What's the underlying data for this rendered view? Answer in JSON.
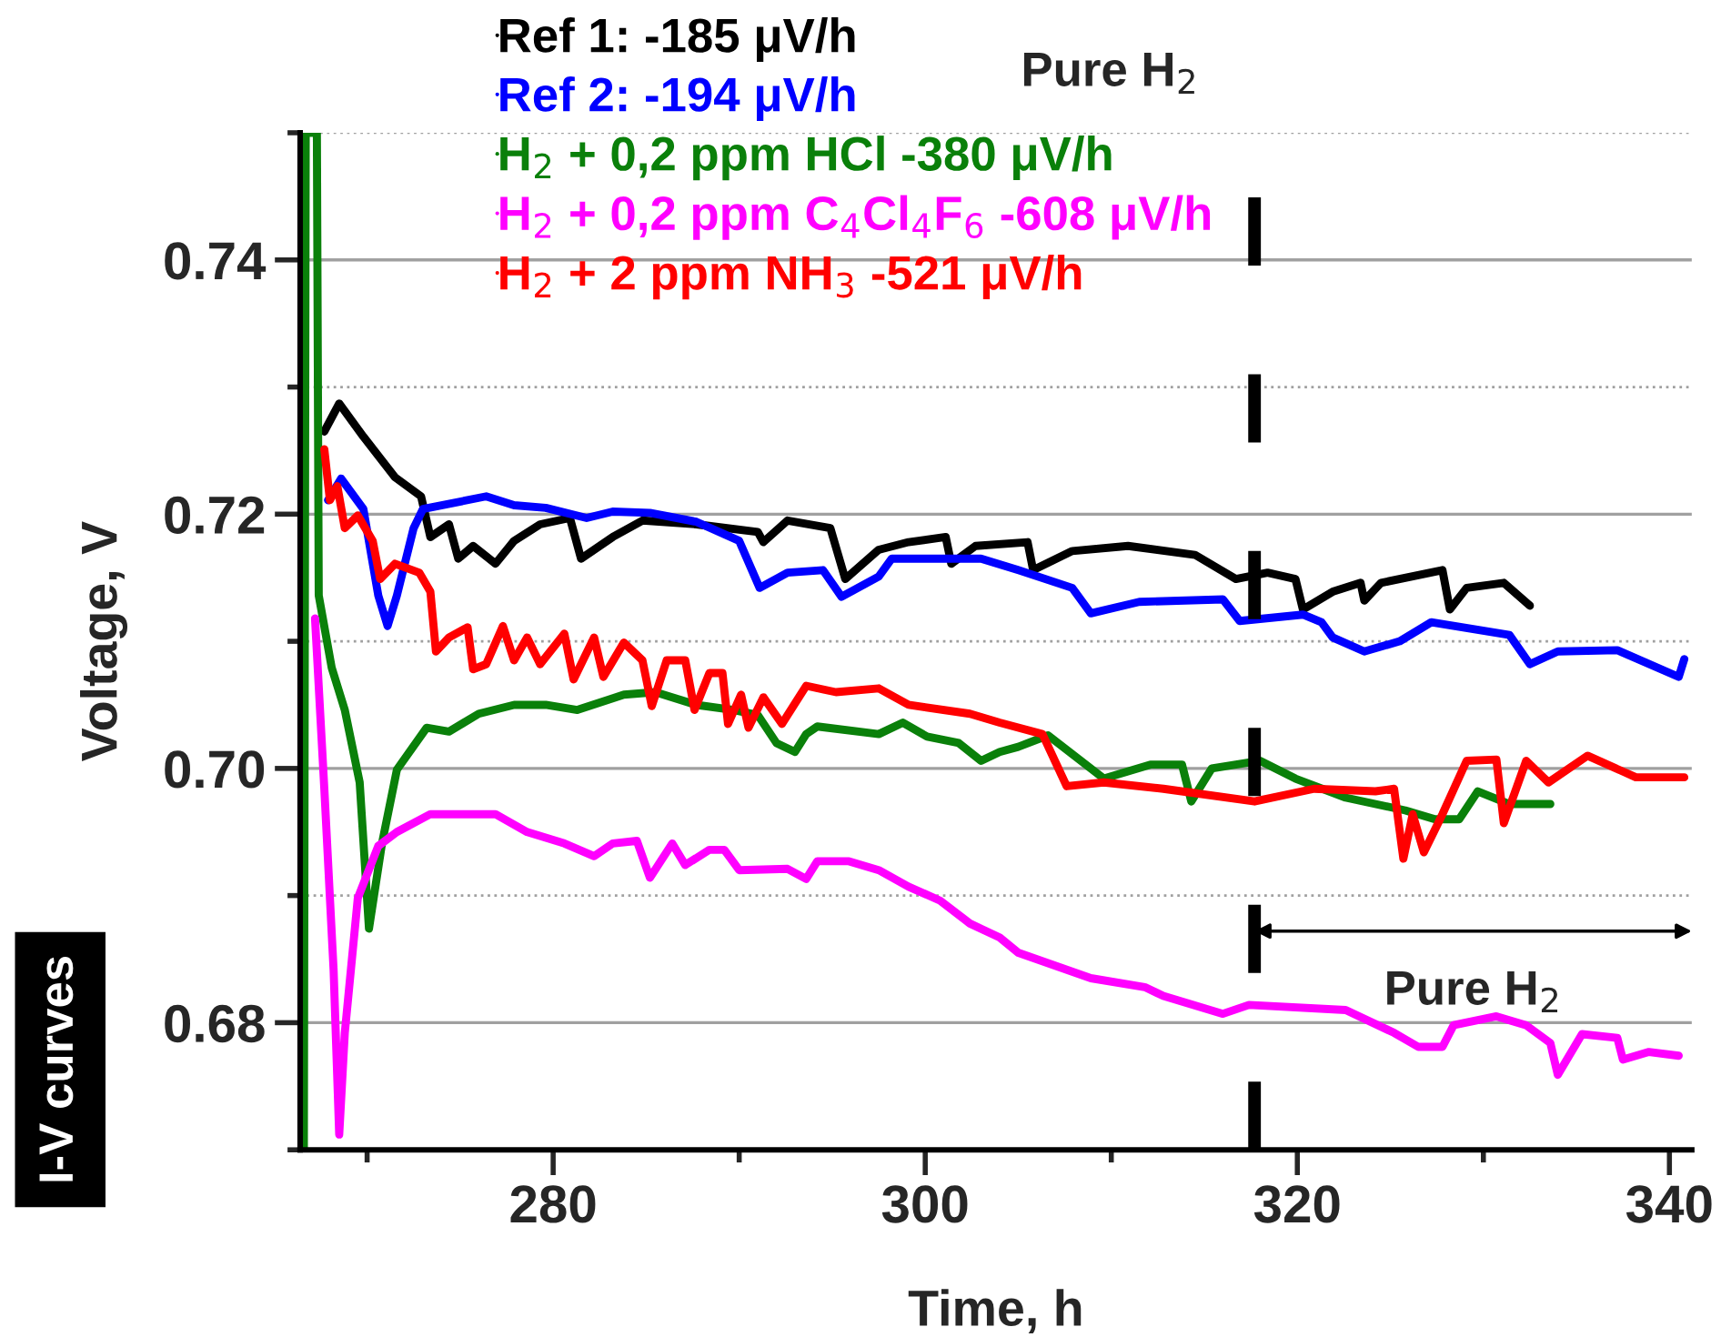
{
  "chart_data": {
    "type": "line",
    "xlabel": "Time, h",
    "ylabel": "Voltage, V",
    "xlim": [
      266.4,
      341.2
    ],
    "ylim": [
      0.67,
      0.75
    ],
    "xticks": [
      {
        "value": 270,
        "label": null
      },
      280,
      {
        "value": 290,
        "label": null
      },
      300,
      {
        "value": 310,
        "label": null
      },
      320,
      {
        "value": 330,
        "label": null
      },
      340
    ],
    "yticks": [
      {
        "value": 0.67,
        "label": null
      },
      0.68,
      {
        "value": 0.69,
        "label": null
      },
      {
        "value": 0.7,
        "label": "0.70"
      },
      {
        "value": 0.71,
        "label": null
      },
      0.72,
      {
        "value": 0.73,
        "label": null
      },
      0.74,
      {
        "value": 0.75,
        "label": null
      }
    ],
    "grid": "y",
    "legend": "top",
    "marker": "none",
    "line_style": "solid",
    "series": [
      {
        "name": "Ref 1: -185 μV/h",
        "color": "#000000",
        "x": [
          267.7,
          268.5,
          269.8,
          271.5,
          272.9,
          273.4,
          274.4,
          274.9,
          275.7,
          276.9,
          277.9,
          279.3,
          280.9,
          281.5,
          283.2,
          284.8,
          287.7,
          291.0,
          291.3,
          292.6,
          294.9,
          295.7,
          297.5,
          299.1,
          301.1,
          301.4,
          302.7,
          305.5,
          305.8,
          307.9,
          310.9,
          314.5,
          316.7,
          318.4,
          319.9,
          320.3,
          321.9,
          323.4,
          323.6,
          324.5,
          327.8,
          328.2,
          329.1,
          331.1,
          332.5
        ],
        "values": [
          0.7265,
          0.7287,
          0.7261,
          0.7229,
          0.7214,
          0.7182,
          0.7192,
          0.7165,
          0.7175,
          0.7161,
          0.7179,
          0.7192,
          0.7197,
          0.7165,
          0.7182,
          0.7195,
          0.7192,
          0.7186,
          0.7178,
          0.7195,
          0.7189,
          0.7149,
          0.7172,
          0.7178,
          0.7182,
          0.7161,
          0.7175,
          0.7178,
          0.7156,
          0.7171,
          0.7175,
          0.7168,
          0.7149,
          0.7154,
          0.7149,
          0.7125,
          0.7139,
          0.7146,
          0.7132,
          0.7146,
          0.7156,
          0.7125,
          0.7142,
          0.7146,
          0.7128
        ]
      },
      {
        "name": "Ref 2: -194 μV/h",
        "color": "#0000ff",
        "x": [
          267.9,
          268.6,
          269.8,
          270.6,
          271.1,
          271.6,
          272.5,
          273.0,
          276.4,
          277.9,
          279.6,
          281.8,
          283.2,
          285.2,
          287.7,
          290.0,
          291.1,
          292.6,
          294.5,
          295.5,
          297.5,
          298.2,
          300.8,
          303.0,
          305.0,
          307.9,
          308.9,
          311.5,
          316.0,
          316.9,
          320.3,
          321.3,
          321.9,
          323.6,
          325.5,
          327.2,
          331.4,
          332.5,
          334.0,
          337.2,
          340.5,
          340.8
        ],
        "values": [
          0.7211,
          0.7228,
          0.7204,
          0.7136,
          0.7112,
          0.7136,
          0.7189,
          0.7204,
          0.7214,
          0.7207,
          0.7205,
          0.7197,
          0.7202,
          0.7201,
          0.7194,
          0.7179,
          0.7142,
          0.7154,
          0.7156,
          0.7135,
          0.7151,
          0.7165,
          0.7165,
          0.7165,
          0.7156,
          0.7142,
          0.7122,
          0.7131,
          0.7133,
          0.7116,
          0.7121,
          0.7115,
          0.7103,
          0.7092,
          0.71,
          0.7115,
          0.7105,
          0.7082,
          0.7092,
          0.7093,
          0.7072,
          0.7086
        ]
      },
      {
        "name": "H$_{2}$ + 0,2 ppm HCl -380 μV/h",
        "color": "#0a800a",
        "x": [
          266.6,
          266.7,
          267.3,
          267.4,
          268.1,
          268.8,
          269.6,
          270.1,
          270.8,
          271.6,
          273.2,
          274.4,
          276.0,
          277.9,
          279.6,
          281.3,
          283.8,
          285.5,
          287.7,
          289.7,
          291.0,
          292.0,
          293.0,
          293.6,
          294.2,
          297.5,
          298.8,
          300.1,
          301.8,
          303.0,
          304.0,
          305.0,
          306.6,
          309.6,
          312.1,
          313.8,
          314.3,
          315.4,
          318.0,
          319.9,
          322.6,
          325.8,
          327.4,
          328.7,
          329.7,
          331.4,
          333.6
        ],
        "values": [
          0.67,
          0.75,
          0.75,
          0.7136,
          0.7079,
          0.7046,
          0.6989,
          0.6874,
          0.6941,
          0.6999,
          0.7032,
          0.7029,
          0.7043,
          0.705,
          0.705,
          0.7046,
          0.7058,
          0.706,
          0.705,
          0.7046,
          0.7042,
          0.702,
          0.7013,
          0.7027,
          0.7033,
          0.7027,
          0.7036,
          0.7025,
          0.702,
          0.7006,
          0.7013,
          0.7017,
          0.7026,
          0.6992,
          0.7003,
          0.7003,
          0.6974,
          0.7,
          0.7006,
          0.6992,
          0.6977,
          0.6967,
          0.696,
          0.696,
          0.6982,
          0.6972,
          0.6972
        ]
      },
      {
        "name": "H$_{2}$ + 0,2 ppm C$_{4}$Cl$_{4}$F$_{6}$ -608 μV/h",
        "color": "#ff00ff",
        "x": [
          267.2,
          267.7,
          268.2,
          268.5,
          268.8,
          269.5,
          270.6,
          271.6,
          273.4,
          275.7,
          276.9,
          278.6,
          280.6,
          282.2,
          283.2,
          284.5,
          285.2,
          286.4,
          287.1,
          288.4,
          289.2,
          290.0,
          292.6,
          293.6,
          294.2,
          295.9,
          297.5,
          299.1,
          300.8,
          302.4,
          304.0,
          305.0,
          308.9,
          311.8,
          312.8,
          316.0,
          317.4,
          322.6,
          325.2,
          326.5,
          327.8,
          328.4,
          330.7,
          332.3,
          333.6,
          334.0,
          335.3,
          337.2,
          337.5,
          338.9,
          340.5
        ],
        "values": [
          0.7118,
          0.6984,
          0.6841,
          0.6712,
          0.6792,
          0.6898,
          0.6939,
          0.695,
          0.6964,
          0.6964,
          0.6964,
          0.695,
          0.6941,
          0.6931,
          0.6941,
          0.6943,
          0.6914,
          0.6941,
          0.6924,
          0.6936,
          0.6936,
          0.692,
          0.6921,
          0.6913,
          0.6927,
          0.6927,
          0.692,
          0.6907,
          0.6896,
          0.6878,
          0.6867,
          0.6855,
          0.6835,
          0.6828,
          0.6821,
          0.6807,
          0.6814,
          0.681,
          0.6792,
          0.6781,
          0.6781,
          0.6798,
          0.6805,
          0.6798,
          0.6784,
          0.6759,
          0.6791,
          0.6788,
          0.6771,
          0.6777,
          0.6774
        ]
      },
      {
        "name": "H$_{2}$ + 2 ppm NH$_{3}$ -521 μV/h",
        "color": "#ff0000",
        "x": [
          267.7,
          268.0,
          268.4,
          268.8,
          269.5,
          270.3,
          270.7,
          271.5,
          272.8,
          273.4,
          273.7,
          274.4,
          275.4,
          275.7,
          276.4,
          277.3,
          277.9,
          278.6,
          279.3,
          280.6,
          281.1,
          282.2,
          282.7,
          283.8,
          284.8,
          285.3,
          286.1,
          287.1,
          287.6,
          288.4,
          289.1,
          289.4,
          290.1,
          290.5,
          291.3,
          292.3,
          293.6,
          295.2,
          297.5,
          299.1,
          302.4,
          304.0,
          306.3,
          307.6,
          309.6,
          312.8,
          317.7,
          320.9,
          324.2,
          325.2,
          325.7,
          326.2,
          326.8,
          327.8,
          329.1,
          330.7,
          331.1,
          332.3,
          333.5,
          335.6,
          338.2,
          340.8
        ],
        "values": [
          0.7251,
          0.7211,
          0.7222,
          0.7189,
          0.7199,
          0.7179,
          0.7149,
          0.7161,
          0.7154,
          0.7139,
          0.7092,
          0.7103,
          0.7111,
          0.7078,
          0.7082,
          0.7112,
          0.7085,
          0.7103,
          0.7082,
          0.7106,
          0.707,
          0.7103,
          0.7072,
          0.7099,
          0.7085,
          0.7049,
          0.7085,
          0.7085,
          0.7046,
          0.7075,
          0.7075,
          0.7035,
          0.7058,
          0.7032,
          0.7056,
          0.7035,
          0.7065,
          0.706,
          0.7063,
          0.705,
          0.7043,
          0.7036,
          0.7027,
          0.6986,
          0.6989,
          0.6984,
          0.6974,
          0.6984,
          0.6982,
          0.6984,
          0.6929,
          0.6964,
          0.6934,
          0.6964,
          0.7006,
          0.7007,
          0.6957,
          0.7006,
          0.6989,
          0.701,
          0.6993,
          0.6993
        ]
      }
    ],
    "ref_lines": [
      {
        "axis": "x",
        "value": 317.7,
        "color": "#000000",
        "line_style": "dashed"
      }
    ],
    "annotations": [
      "Pure H$_{2}$",
      "I-V curves",
      "Pure H$_{2}$"
    ]
  }
}
